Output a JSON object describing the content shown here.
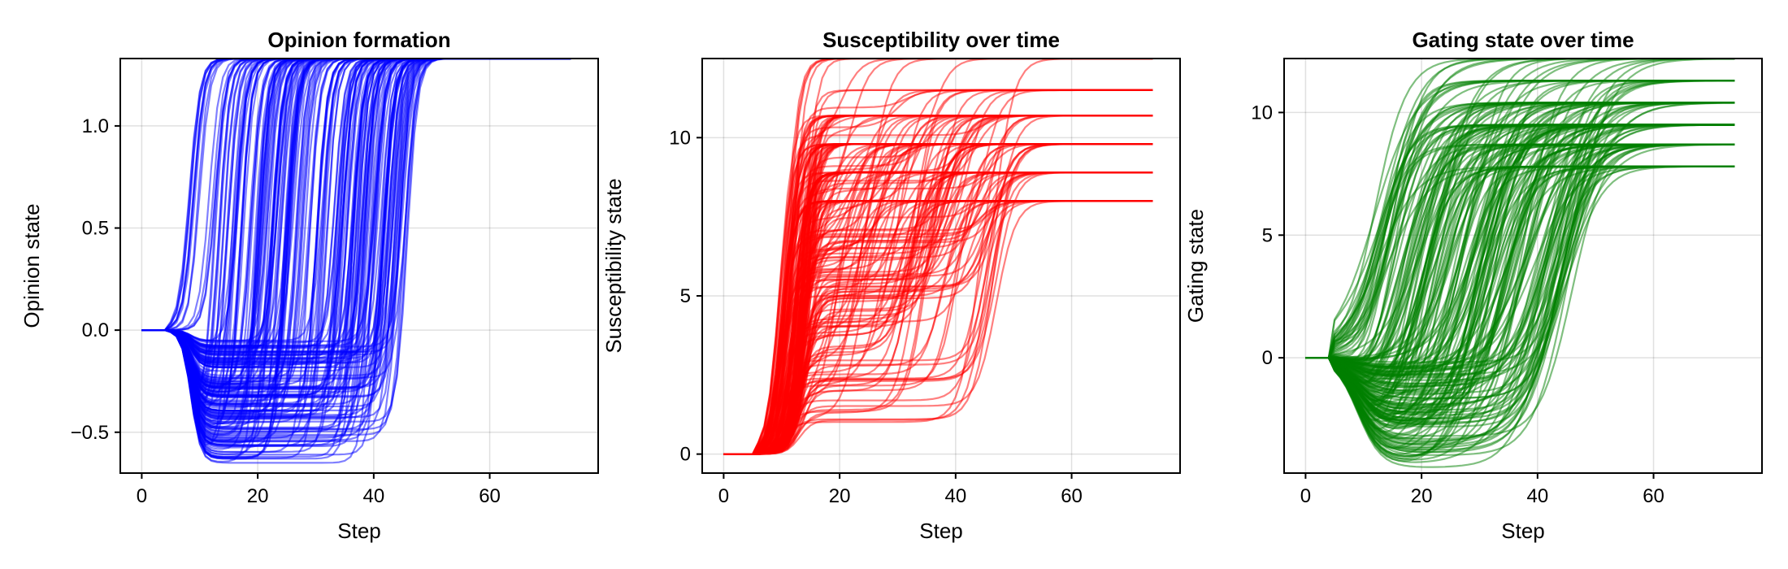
{
  "chart_data": [
    {
      "type": "line",
      "title": "Opinion formation",
      "xlabel": "Step",
      "ylabel": "Opinion state",
      "xlim": [
        -3.7,
        78.7
      ],
      "ylim": [
        -0.7,
        1.33
      ],
      "xticks": [
        0,
        20,
        40,
        60
      ],
      "yticks": [
        -0.5,
        0.0,
        0.5,
        1.0
      ],
      "ytick_labels": [
        "−0.5",
        "0.0",
        "0.5",
        "1.0"
      ],
      "grid": true,
      "color": "#0000ff",
      "series_count": 200,
      "steps": 75,
      "description": "Each trajectory starts at 0, splits near step 5-8, either rises sigmoidally to the upper plateau 1.33 (switch steps roughly 8-46) or first dips to a lower plateau between -0.1 and -0.65 and then rises to 1.33.",
      "upper_plateau": 1.33,
      "lower_plateau_range": [
        -0.65,
        -0.05
      ],
      "switch_step_range": [
        8,
        46
      ]
    },
    {
      "type": "line",
      "title": "Susceptibility over time",
      "xlabel": "Step",
      "ylabel": "Susceptibility state",
      "xlim": [
        -3.7,
        78.7
      ],
      "ylim": [
        -0.6,
        12.5
      ],
      "xticks": [
        0,
        20,
        40,
        60
      ],
      "yticks": [
        0,
        5,
        10
      ],
      "ytick_labels": [
        "0",
        "5",
        "10"
      ],
      "grid": true,
      "color": "#ff0000",
      "series_count": 200,
      "steps": 75,
      "description": "Trajectories stay at 0 until step ~7, rise steeply around step 10-15 to intermediate levels (1-10), some rise again later (steps 20-50); final plateaus cluster at 8.0, 8.9, 9.8, 10.7, 11.5 and 12.5.",
      "final_levels": [
        8.0,
        8.9,
        9.8,
        10.7,
        11.5,
        12.5
      ]
    },
    {
      "type": "line",
      "title": "Gating state over time",
      "xlabel": "Step",
      "ylabel": "Gating state",
      "xlim": [
        -3.7,
        78.7
      ],
      "ylim": [
        -4.7,
        12.2
      ],
      "xticks": [
        0,
        20,
        40,
        60
      ],
      "yticks": [
        0,
        5,
        10
      ],
      "ytick_labels": [
        "0",
        "5",
        "10"
      ],
      "grid": true,
      "color": "#008000",
      "series_count": 200,
      "steps": 75,
      "description": "Trajectories start at 0, many dip negative (down to about -4.7) around steps 15-30, then rise sigmoidally to final plateaus near 7.8, 8.7, 9.5, 10.4, 11.3 and 12.2.",
      "final_levels": [
        7.8,
        8.7,
        9.5,
        10.4,
        11.3,
        12.2
      ]
    }
  ]
}
